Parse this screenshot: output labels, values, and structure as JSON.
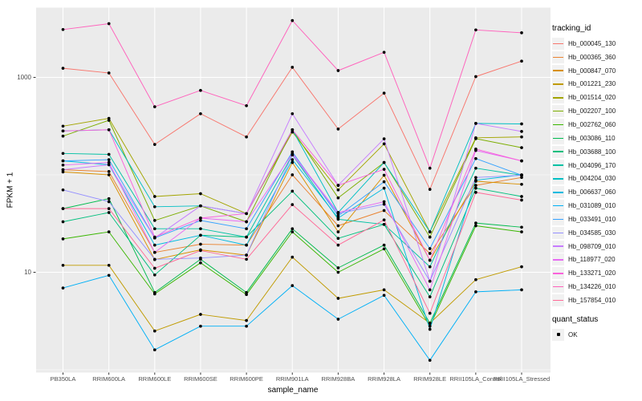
{
  "figure": {
    "y_axis_title": "FPKM + 1",
    "x_axis_title": "sample_name",
    "legend": {
      "tracking_title": "tracking_id",
      "quant_title": "quant_status",
      "quant_label": "OK"
    }
  },
  "chart_data": {
    "type": "line",
    "title": "",
    "xlabel": "sample_name",
    "ylabel": "FPKM + 1",
    "y_scale": "log10",
    "ylim": [
      0.94,
      5200
    ],
    "grid": "on",
    "legend_position": "right",
    "panel_bg": "#EBEBEB",
    "gridline_color": "#FFFFFF",
    "axis_text_color": "#4D4D4D",
    "point_color": "#000000",
    "y_tick_values": [
      1000,
      10
    ],
    "y_tick_labels": [
      "1000",
      "10"
    ],
    "y_major_gridlines": [
      10,
      1000
    ],
    "y_minor_gridlines": [
      1,
      100
    ],
    "categories": [
      "PB350LA",
      "RRIM600LA",
      "RRIM600LE",
      "RRIM600SE",
      "RRIM600PE",
      "RRIM901LA",
      "RRIM928BA",
      "RRIM928LA",
      "RRIM928LE",
      "RRII105LA_Control",
      "RRII105LA_Stressed"
    ],
    "quant_status": {
      "label": "OK",
      "marker": "black-square"
    },
    "series": [
      {
        "name": "Hb_000045_130",
        "color": "#F8766D",
        "values": [
          1240,
          1110,
          205,
          424,
          245,
          1270,
          295,
          690,
          71,
          1020,
          1470
        ]
      },
      {
        "name": "Hb_000365_360",
        "color": "#EA8331",
        "values": [
          113,
          108,
          16,
          19.4,
          19,
          100,
          30,
          43,
          15.6,
          78,
          94
        ]
      },
      {
        "name": "Hb_000847_070",
        "color": "#D89000",
        "values": [
          107,
          100,
          13.5,
          17,
          15,
          134,
          26,
          99,
          13.3,
          86,
          80
        ]
      },
      {
        "name": "Hb_001221_230",
        "color": "#C09B00",
        "values": [
          11.8,
          11.8,
          2.5,
          3.7,
          3.2,
          14.3,
          5.4,
          6.6,
          3,
          8.4,
          11.4
        ]
      },
      {
        "name": "Hb_001514_020",
        "color": "#A3A500",
        "values": [
          316,
          380,
          60,
          64,
          40,
          275,
          70,
          208,
          26,
          240,
          245
        ]
      },
      {
        "name": "Hb_002207_100",
        "color": "#7CAE00",
        "values": [
          250,
          363,
          34,
          48,
          33,
          290,
          58,
          134,
          23,
          235,
          190
        ]
      },
      {
        "name": "Hb_002762_060",
        "color": "#39B600",
        "values": [
          22,
          26,
          6,
          12.5,
          5.9,
          26,
          10,
          17.4,
          2.8,
          30,
          26
        ]
      },
      {
        "name": "Hb_003086_110",
        "color": "#00BB4E",
        "values": [
          45,
          57,
          6.2,
          13.6,
          6.2,
          28,
          11.1,
          19,
          3,
          32,
          29
        ]
      },
      {
        "name": "Hb_003688_100",
        "color": "#00BF7D",
        "values": [
          33,
          41,
          9.4,
          24,
          23,
          68,
          22.3,
          31,
          5.6,
          73,
          60
        ]
      },
      {
        "name": "Hb_004096_170",
        "color": "#00C1A3",
        "values": [
          166,
          162,
          28,
          28,
          23,
          160,
          35,
          31,
          11.4,
          117,
          99
        ]
      },
      {
        "name": "Hb_004204_030",
        "color": "#00BFC4",
        "values": [
          282,
          290,
          47,
          48,
          40,
          290,
          41,
          134,
          26,
          337,
          333
        ]
      },
      {
        "name": "Hb_006637_060",
        "color": "#00BAE0",
        "values": [
          139,
          127,
          19,
          24,
          19,
          143,
          36,
          73,
          2.6,
          88,
          100
        ]
      },
      {
        "name": "Hb_031089_010",
        "color": "#00B0F6",
        "values": [
          6.9,
          9.3,
          1.6,
          2.8,
          2.8,
          7.3,
          3.3,
          5.8,
          1.25,
          6.3,
          6.6
        ]
      },
      {
        "name": "Hb_033491_010",
        "color": "#35A2FF",
        "values": [
          139,
          143,
          22.5,
          34,
          28,
          172,
          38,
          85,
          17.5,
          147,
          99
        ]
      },
      {
        "name": "Hb_034585_030",
        "color": "#9590FF",
        "values": [
          70,
          53,
          13.6,
          14,
          15,
          160,
          40,
          50,
          8.1,
          94,
          99
        ]
      },
      {
        "name": "Hb_098709_010",
        "color": "#C77CFF",
        "values": [
          113,
          127,
          22.5,
          48,
          40,
          424,
          78,
          234,
          8.1,
          337,
          279
        ]
      },
      {
        "name": "Hb_118977_020",
        "color": "#E76BF3",
        "values": [
          126,
          134,
          16,
          36,
          33,
          165,
          41,
          53,
          6.6,
          178,
          139
        ]
      },
      {
        "name": "Hb_133271_020",
        "color": "#FA62DB",
        "values": [
          282,
          290,
          23,
          36,
          40,
          290,
          78,
          114,
          13.3,
          184,
          139
        ]
      },
      {
        "name": "Hb_134226_010",
        "color": "#FF62BC",
        "values": [
          3100,
          3560,
          500,
          735,
          512,
          3830,
          1175,
          1810,
          117,
          3070,
          2870
        ]
      },
      {
        "name": "Hb_157854_010",
        "color": "#FF6A98",
        "values": [
          45,
          45,
          11,
          16.7,
          13.6,
          49.5,
          19,
          34.5,
          3.8,
          66,
          55
        ]
      }
    ]
  }
}
